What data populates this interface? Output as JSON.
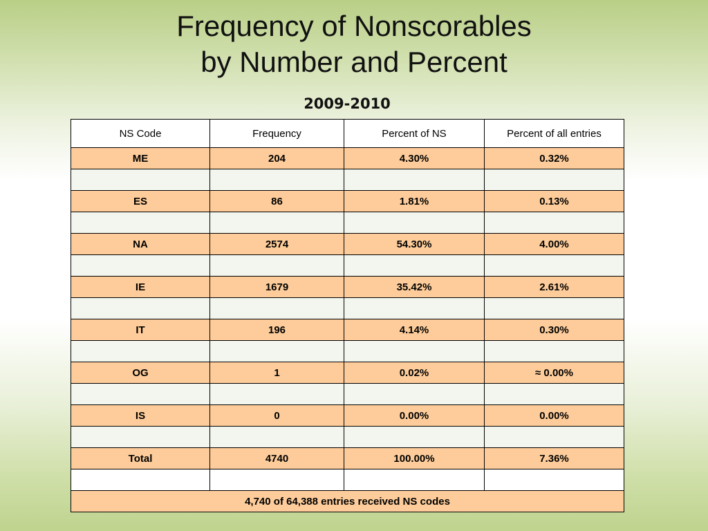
{
  "title_line1": "Frequency of Nonscorables",
  "title_line2": "by Number and Percent",
  "subtitle": "2009-2010",
  "table": {
    "headers": [
      "NS Code",
      "Frequency",
      "Percent of NS",
      "Percent of all entries"
    ],
    "rows": [
      [
        "ME",
        "204",
        "4.30%",
        "0.32%"
      ],
      [
        "ES",
        "86",
        "1.81%",
        "0.13%"
      ],
      [
        "NA",
        "2574",
        "54.30%",
        "4.00%"
      ],
      [
        "IE",
        "1679",
        "35.42%",
        "2.61%"
      ],
      [
        "IT",
        "196",
        "4.14%",
        "0.30%"
      ],
      [
        "OG",
        "1",
        "0.02%",
        "≈ 0.00%"
      ],
      [
        "IS",
        "0",
        "0.00%",
        "0.00%"
      ],
      [
        "Total",
        "4740",
        "100.00%",
        "7.36%"
      ]
    ],
    "footer": "4,740 of 64,388 entries  received NS codes"
  },
  "colors": {
    "data_row": "#fdcc9a",
    "spacer_row": "#f2f6ee",
    "background_green": "#b9cf86"
  }
}
